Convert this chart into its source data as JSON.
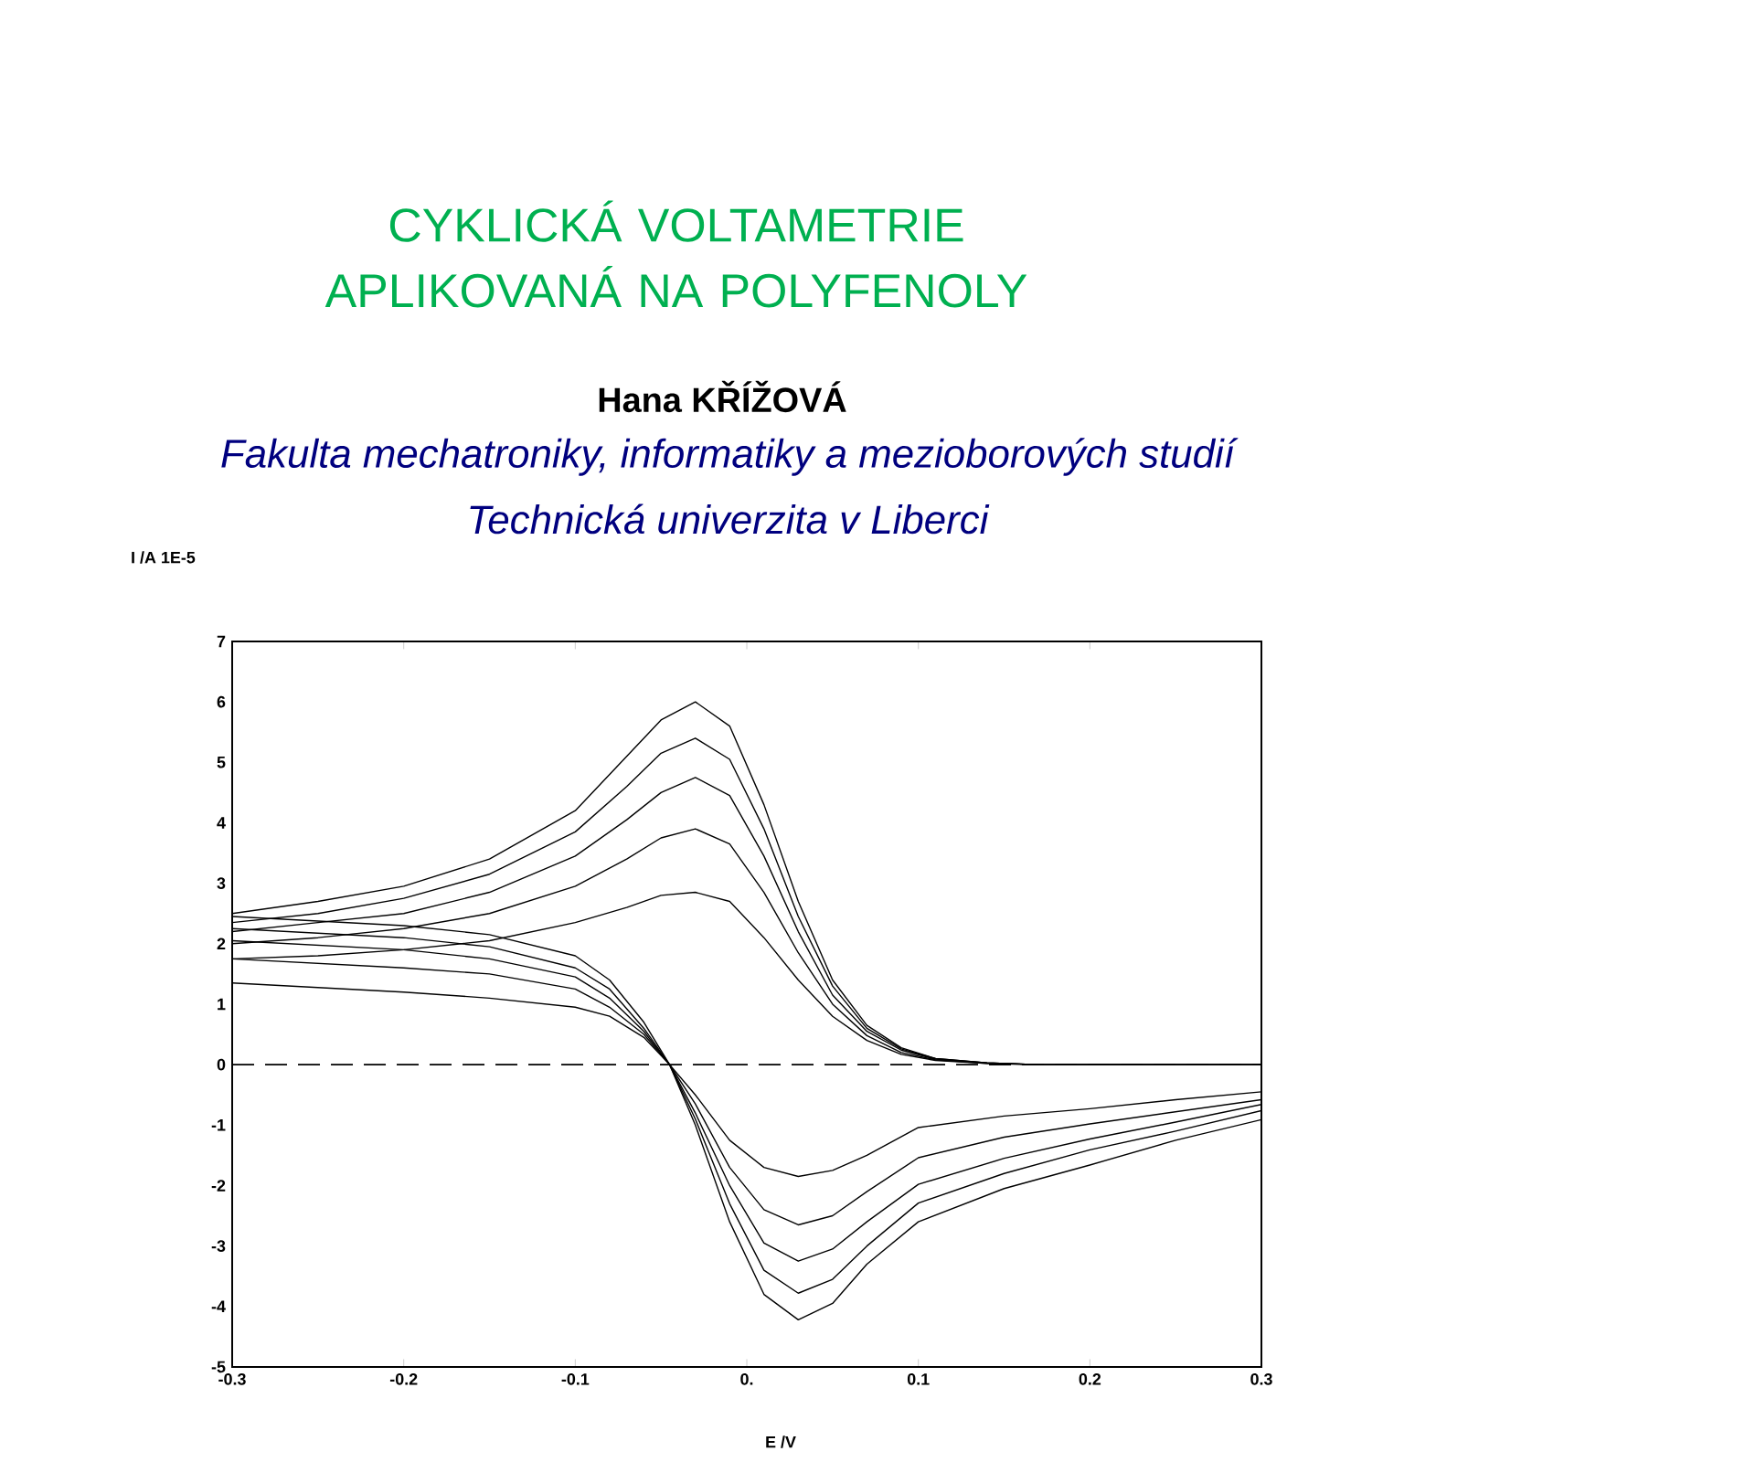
{
  "chart_data": {
    "type": "line",
    "title": "CYKLICKÁ VOLTAMETRIE APLIKOVANÁ NA POLYFENOLY",
    "subtitle": "Hana KŘÍŽOVÁ",
    "annotations": [
      "Fakulta mechatroniky, informatiky a mezioborových studií",
      "Technická univerzita v Liberci",
      "I /A  1E-5"
    ],
    "xlabel": "E /V",
    "xlim": [
      -0.3,
      0.3
    ],
    "ylim": [
      -5,
      7
    ],
    "xticks": [
      -0.3,
      -0.2,
      -0.1,
      {
        "value": 0,
        "label": "0."
      },
      0.1,
      0.2,
      0.3
    ],
    "yticks": [
      -5,
      -4,
      -3,
      -2,
      -1,
      0,
      1,
      2,
      3,
      4,
      5,
      6,
      7
    ],
    "ref_lines": [
      {
        "axis": "y",
        "value": 0,
        "color": "#000000",
        "line_style": "dashed"
      }
    ],
    "series": [
      {
        "color": "#000000",
        "x": [
          -0.3,
          -0.25,
          -0.2,
          -0.15,
          -0.1,
          -0.07,
          -0.05,
          -0.03,
          -0.01,
          0.01,
          0.03,
          0.05,
          0.07,
          0.09,
          0.11,
          0.14,
          0.17,
          0.3
        ],
        "values": [
          2.5,
          2.7,
          2.95,
          3.4,
          4.2,
          5.1,
          5.7,
          6.0,
          5.6,
          4.3,
          2.7,
          1.4,
          0.65,
          0.28,
          0.1,
          0.03,
          0,
          0
        ]
      },
      {
        "color": "#000000",
        "x": [
          -0.3,
          -0.25,
          -0.2,
          -0.15,
          -0.1,
          -0.07,
          -0.05,
          -0.03,
          -0.01,
          0.01,
          0.03,
          0.05,
          0.07,
          0.09,
          0.11,
          0.14,
          0.17,
          0.3
        ],
        "values": [
          2.35,
          2.5,
          2.75,
          3.15,
          3.85,
          4.6,
          5.15,
          5.4,
          5.05,
          3.9,
          2.45,
          1.3,
          0.6,
          0.26,
          0.1,
          0.03,
          0,
          0
        ]
      },
      {
        "color": "#000000",
        "x": [
          -0.3,
          -0.25,
          -0.2,
          -0.15,
          -0.1,
          -0.07,
          -0.05,
          -0.03,
          -0.01,
          0.01,
          0.03,
          0.05,
          0.07,
          0.09,
          0.11,
          0.14,
          0.17,
          0.3
        ],
        "values": [
          2.2,
          2.35,
          2.5,
          2.85,
          3.45,
          4.05,
          4.5,
          4.75,
          4.45,
          3.45,
          2.2,
          1.15,
          0.55,
          0.24,
          0.09,
          0.03,
          0,
          0
        ]
      },
      {
        "color": "#000000",
        "x": [
          -0.3,
          -0.25,
          -0.2,
          -0.15,
          -0.1,
          -0.07,
          -0.05,
          -0.03,
          -0.01,
          0.01,
          0.03,
          0.05,
          0.07,
          0.09,
          0.11,
          0.14,
          0.17,
          0.3
        ],
        "values": [
          2.0,
          2.1,
          2.25,
          2.5,
          2.95,
          3.4,
          3.75,
          3.9,
          3.65,
          2.85,
          1.85,
          1.0,
          0.48,
          0.2,
          0.08,
          0.02,
          0,
          0
        ]
      },
      {
        "color": "#000000",
        "x": [
          -0.3,
          -0.25,
          -0.2,
          -0.15,
          -0.1,
          -0.07,
          -0.05,
          -0.03,
          -0.01,
          0.01,
          0.03,
          0.05,
          0.07,
          0.09,
          0.11,
          0.14,
          0.17,
          0.3
        ],
        "values": [
          1.75,
          1.8,
          1.9,
          2.05,
          2.35,
          2.6,
          2.8,
          2.85,
          2.7,
          2.1,
          1.4,
          0.8,
          0.4,
          0.17,
          0.07,
          0.02,
          0,
          0
        ]
      },
      {
        "color": "#000000",
        "x": [
          -0.3,
          -0.2,
          -0.15,
          -0.1,
          -0.08,
          -0.06,
          -0.045,
          -0.03,
          -0.01,
          0.01,
          0.03,
          0.05,
          0.07,
          0.1,
          0.15,
          0.2,
          0.25,
          0.3
        ],
        "values": [
          2.45,
          2.3,
          2.15,
          1.8,
          1.4,
          0.7,
          0,
          -1.0,
          -2.6,
          -3.8,
          -4.22,
          -3.95,
          -3.3,
          -2.6,
          -2.05,
          -1.66,
          -1.25,
          -0.91
        ]
      },
      {
        "color": "#000000",
        "x": [
          -0.3,
          -0.2,
          -0.15,
          -0.1,
          -0.08,
          -0.06,
          -0.045,
          -0.03,
          -0.01,
          0.01,
          0.03,
          0.05,
          0.07,
          0.1,
          0.15,
          0.2,
          0.25,
          0.3
        ],
        "values": [
          2.25,
          2.1,
          1.95,
          1.6,
          1.25,
          0.6,
          0,
          -0.9,
          -2.3,
          -3.4,
          -3.78,
          -3.55,
          -3.0,
          -2.29,
          -1.8,
          -1.41,
          -1.1,
          -0.76
        ]
      },
      {
        "color": "#000000",
        "x": [
          -0.3,
          -0.2,
          -0.15,
          -0.1,
          -0.08,
          -0.06,
          -0.045,
          -0.03,
          -0.01,
          0.01,
          0.03,
          0.05,
          0.07,
          0.1,
          0.15,
          0.2,
          0.25,
          0.3
        ],
        "values": [
          2.05,
          1.9,
          1.75,
          1.45,
          1.1,
          0.55,
          0,
          -0.8,
          -2.0,
          -2.95,
          -3.25,
          -3.05,
          -2.6,
          -1.98,
          -1.55,
          -1.23,
          -0.95,
          -0.66
        ]
      },
      {
        "color": "#000000",
        "x": [
          -0.3,
          -0.2,
          -0.15,
          -0.1,
          -0.08,
          -0.06,
          -0.045,
          -0.03,
          -0.01,
          0.01,
          0.03,
          0.05,
          0.07,
          0.1,
          0.15,
          0.2,
          0.25,
          0.3
        ],
        "values": [
          1.75,
          1.6,
          1.5,
          1.25,
          0.95,
          0.5,
          0,
          -0.65,
          -1.7,
          -2.4,
          -2.65,
          -2.5,
          -2.1,
          -1.54,
          -1.2,
          -0.98,
          -0.78,
          -0.58
        ]
      },
      {
        "color": "#000000",
        "x": [
          -0.3,
          -0.2,
          -0.15,
          -0.1,
          -0.08,
          -0.06,
          -0.045,
          -0.03,
          -0.01,
          0.01,
          0.03,
          0.05,
          0.07,
          0.1,
          0.15,
          0.2,
          0.25,
          0.3
        ],
        "values": [
          1.35,
          1.2,
          1.1,
          0.95,
          0.8,
          0.45,
          0,
          -0.5,
          -1.25,
          -1.7,
          -1.85,
          -1.75,
          -1.5,
          -1.04,
          -0.85,
          -0.73,
          -0.58,
          -0.45
        ]
      }
    ]
  }
}
